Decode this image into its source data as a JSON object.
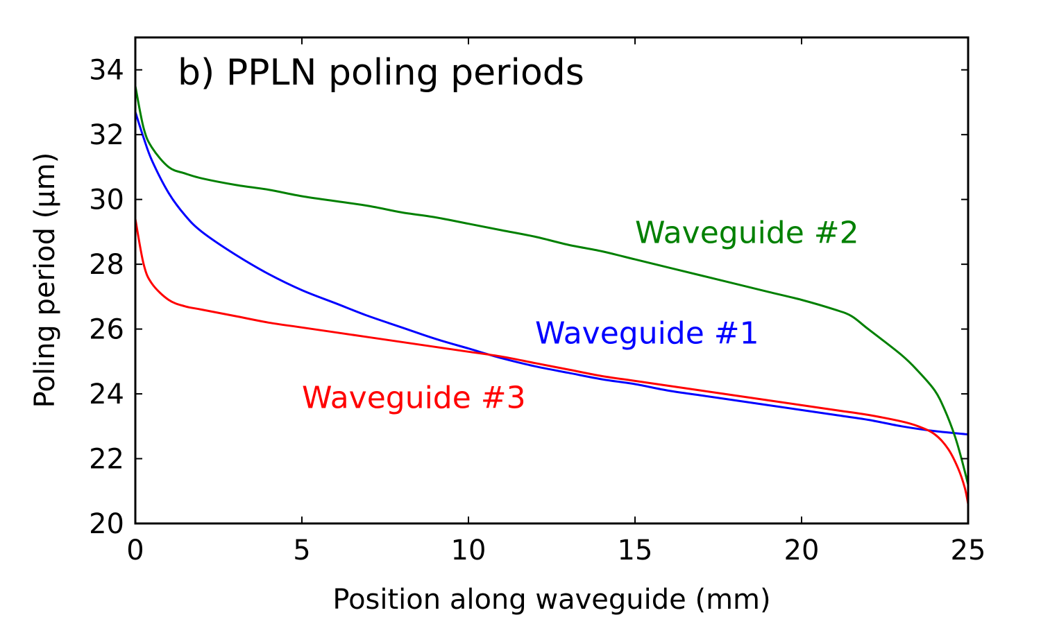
{
  "chart_data": {
    "type": "line",
    "title": "b) PPLN poling periods",
    "xlabel": "Position along waveguide (mm)",
    "ylabel": "Poling period (μm)",
    "xlim": [
      0,
      25
    ],
    "ylim": [
      20,
      35
    ],
    "xticks": [
      0,
      5,
      10,
      15,
      20,
      25
    ],
    "yticks": [
      20,
      22,
      24,
      26,
      28,
      30,
      32,
      34
    ],
    "xtick_labels": [
      "0",
      "5",
      "10",
      "15",
      "20",
      "25"
    ],
    "ytick_labels": [
      "20",
      "22",
      "24",
      "26",
      "28",
      "30",
      "32",
      "34"
    ],
    "grid": false,
    "series": [
      {
        "name": "Waveguide #1",
        "label": "Waveguide #1",
        "color": "#0000ff",
        "x": [
          0,
          0.25,
          0.5,
          1,
          1.5,
          2,
          3,
          4,
          5,
          6,
          7,
          8,
          9,
          10,
          11,
          12,
          13,
          14,
          15,
          16,
          17,
          18,
          19,
          20,
          21,
          22,
          23,
          24,
          25
        ],
        "y": [
          32.7,
          31.9,
          31.2,
          30.2,
          29.5,
          29.0,
          28.3,
          27.7,
          27.2,
          26.8,
          26.4,
          26.05,
          25.7,
          25.4,
          25.1,
          24.85,
          24.65,
          24.45,
          24.3,
          24.1,
          23.95,
          23.8,
          23.65,
          23.5,
          23.35,
          23.2,
          23.0,
          22.85,
          22.75
        ]
      },
      {
        "name": "Waveguide #2",
        "label": "Waveguide #2",
        "color": "#008000",
        "x": [
          0,
          0.25,
          0.5,
          1,
          1.5,
          2,
          3,
          4,
          5,
          6,
          7,
          8,
          9,
          10,
          11,
          12,
          13,
          14,
          15,
          16,
          17,
          18,
          19,
          20,
          21,
          21.5,
          22,
          23,
          23.5,
          24,
          24.3,
          24.6,
          24.8,
          25
        ],
        "y": [
          33.5,
          32.2,
          31.6,
          31.0,
          30.8,
          30.65,
          30.45,
          30.3,
          30.1,
          29.95,
          29.8,
          29.6,
          29.45,
          29.25,
          29.05,
          28.85,
          28.6,
          28.4,
          28.15,
          27.9,
          27.65,
          27.4,
          27.15,
          26.9,
          26.6,
          26.4,
          26.0,
          25.2,
          24.7,
          24.1,
          23.5,
          22.7,
          22.0,
          21.2
        ]
      },
      {
        "name": "Waveguide #3",
        "label": "Waveguide #3",
        "color": "#ff0000",
        "x": [
          0,
          0.25,
          0.5,
          1,
          1.5,
          2,
          3,
          4,
          5,
          6,
          7,
          8,
          9,
          10,
          11,
          12,
          13,
          14,
          15,
          16,
          17,
          18,
          19,
          20,
          21,
          22,
          23,
          23.5,
          24,
          24.4,
          24.7,
          24.9,
          25
        ],
        "y": [
          29.4,
          28.0,
          27.4,
          26.9,
          26.7,
          26.6,
          26.4,
          26.2,
          26.05,
          25.9,
          25.75,
          25.6,
          25.45,
          25.3,
          25.15,
          24.95,
          24.75,
          24.55,
          24.4,
          24.25,
          24.1,
          23.95,
          23.8,
          23.65,
          23.5,
          23.35,
          23.15,
          23.0,
          22.75,
          22.3,
          21.7,
          21.1,
          20.6
        ]
      }
    ],
    "annotations": [
      {
        "text": "Waveguide #2",
        "x": 15.0,
        "y": 29.0,
        "color": "#008000"
      },
      {
        "text": "Waveguide #1",
        "x": 12.0,
        "y": 25.9,
        "color": "#0000ff"
      },
      {
        "text": "Waveguide #3",
        "x": 5.0,
        "y": 23.9,
        "color": "#ff0000"
      }
    ]
  }
}
